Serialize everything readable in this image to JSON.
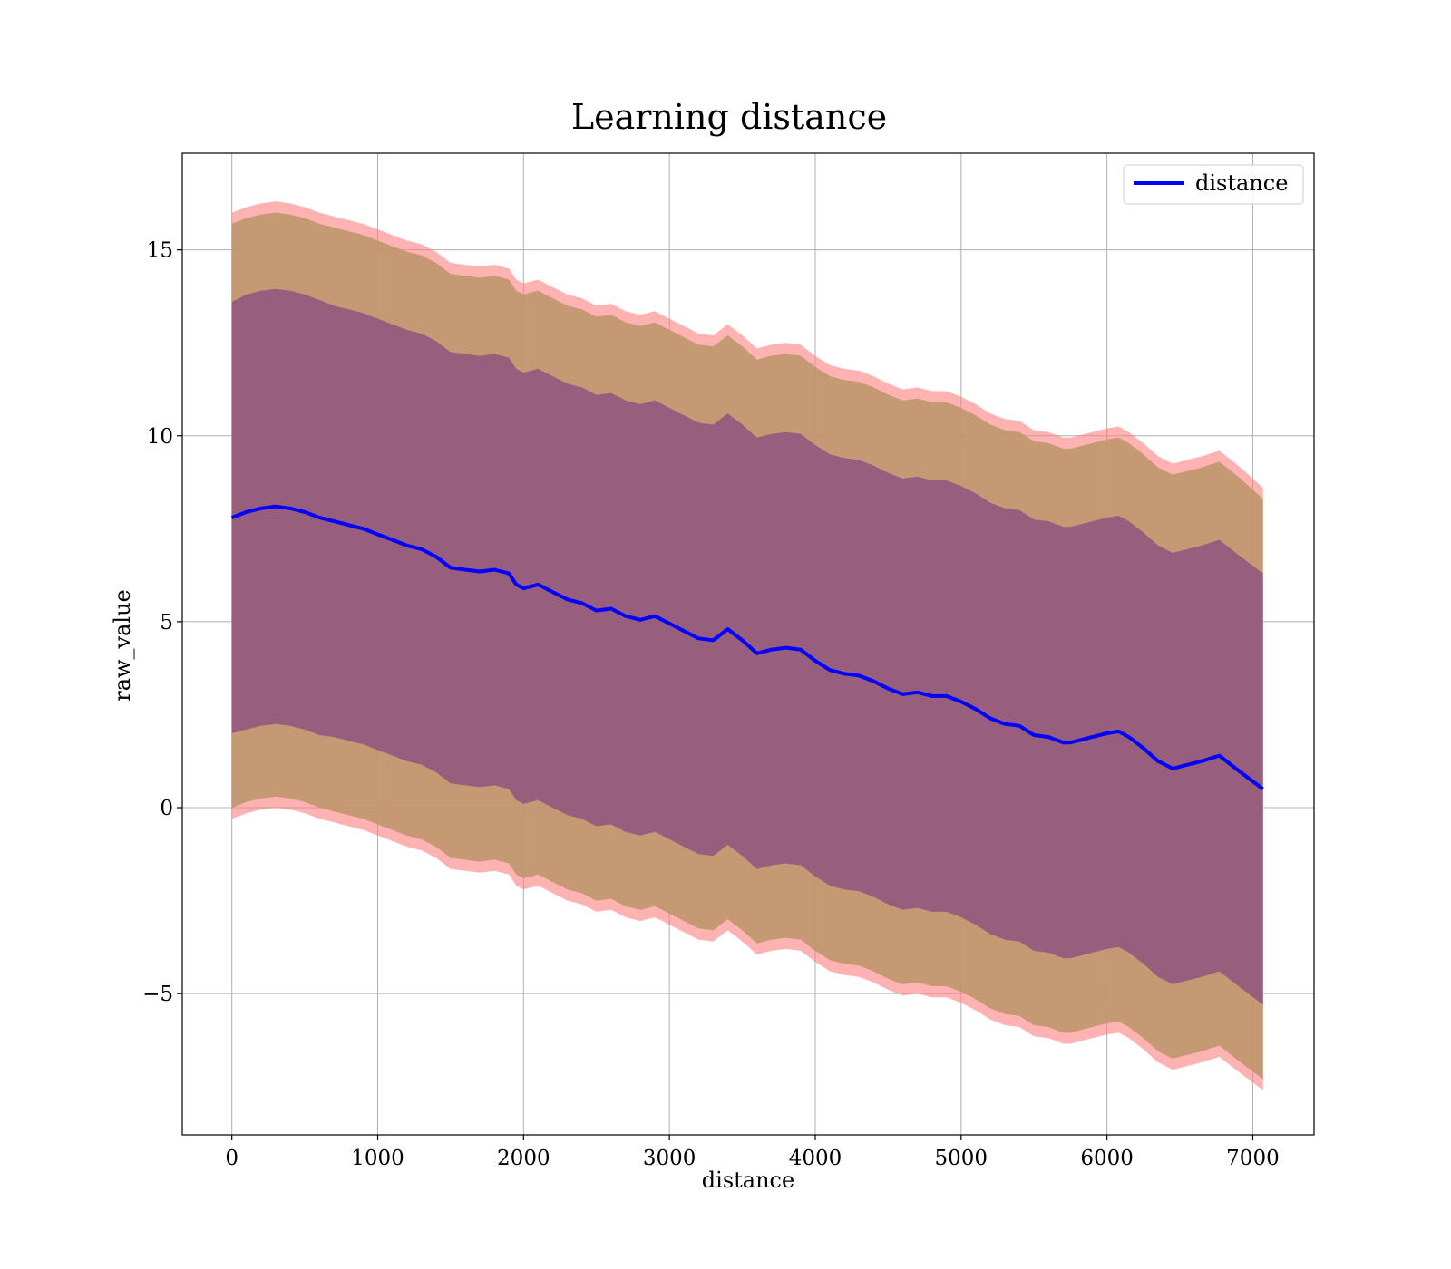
{
  "chart_data": {
    "type": "line",
    "title": "Learning distance",
    "xlabel": "distance",
    "ylabel": "raw_value",
    "xlim": [
      -340,
      7420
    ],
    "ylim": [
      -8.8,
      17.6
    ],
    "x_ticks": [
      0,
      1000,
      2000,
      3000,
      4000,
      5000,
      6000,
      7000
    ],
    "x_tick_labels": [
      "0",
      "1000",
      "2000",
      "3000",
      "4000",
      "5000",
      "6000",
      "7000"
    ],
    "y_ticks": [
      -5,
      0,
      5,
      10,
      15
    ],
    "y_tick_labels": [
      "−5",
      "0",
      "5",
      "10",
      "15"
    ],
    "grid": true,
    "legend": {
      "position": "upper-right",
      "entries": [
        "distance"
      ]
    },
    "colors": {
      "line": "#0000ff",
      "band_outer": "#ff7f7f",
      "band_middle": "#ad9555",
      "band_inner": "#8c4f7f",
      "grid": "#b0b0b0"
    },
    "series": [
      {
        "name": "distance",
        "x": [
          0,
          100,
          200,
          300,
          400,
          500,
          600,
          700,
          800,
          900,
          1000,
          1100,
          1200,
          1300,
          1400,
          1500,
          1600,
          1700,
          1800,
          1900,
          1950,
          2000,
          2100,
          2200,
          2300,
          2400,
          2500,
          2600,
          2700,
          2800,
          2900,
          3000,
          3100,
          3200,
          3300,
          3400,
          3500,
          3600,
          3700,
          3800,
          3900,
          4000,
          4100,
          4200,
          4300,
          4400,
          4500,
          4600,
          4700,
          4800,
          4900,
          5000,
          5100,
          5200,
          5300,
          5400,
          5500,
          5600,
          5700,
          5750,
          5800,
          5900,
          6000,
          6080,
          6150,
          6250,
          6350,
          6450,
          6550,
          6650,
          6770,
          6900,
          7070
        ],
        "y": [
          7.8,
          7.95,
          8.05,
          8.1,
          8.05,
          7.95,
          7.8,
          7.7,
          7.6,
          7.5,
          7.35,
          7.2,
          7.05,
          6.95,
          6.75,
          6.45,
          6.4,
          6.35,
          6.4,
          6.3,
          6.0,
          5.9,
          6.0,
          5.8,
          5.6,
          5.5,
          5.3,
          5.35,
          5.15,
          5.05,
          5.15,
          4.95,
          4.75,
          4.55,
          4.5,
          4.8,
          4.5,
          4.15,
          4.25,
          4.3,
          4.25,
          3.95,
          3.7,
          3.6,
          3.55,
          3.4,
          3.2,
          3.05,
          3.1,
          3.0,
          3.0,
          2.85,
          2.65,
          2.4,
          2.25,
          2.2,
          1.95,
          1.9,
          1.75,
          1.75,
          1.8,
          1.9,
          2.0,
          2.05,
          1.9,
          1.6,
          1.25,
          1.05,
          1.15,
          1.25,
          1.4,
          1.0,
          0.5
        ],
        "band_inner": {
          "upper": [
            13.6,
            13.8,
            13.9,
            13.95,
            13.9,
            13.8,
            13.65,
            13.5,
            13.4,
            13.3,
            13.15,
            13.0,
            12.85,
            12.75,
            12.55,
            12.25,
            12.2,
            12.15,
            12.2,
            12.1,
            11.8,
            11.7,
            11.8,
            11.6,
            11.4,
            11.3,
            11.1,
            11.15,
            10.95,
            10.85,
            10.95,
            10.75,
            10.55,
            10.35,
            10.3,
            10.6,
            10.3,
            9.95,
            10.05,
            10.1,
            10.05,
            9.75,
            9.5,
            9.4,
            9.35,
            9.2,
            9.0,
            8.85,
            8.9,
            8.8,
            8.8,
            8.65,
            8.45,
            8.2,
            8.05,
            8.0,
            7.75,
            7.7,
            7.55,
            7.55,
            7.6,
            7.7,
            7.8,
            7.85,
            7.7,
            7.4,
            7.05,
            6.85,
            6.95,
            7.05,
            7.2,
            6.8,
            6.3
          ],
          "lower": [
            2.0,
            2.1,
            2.2,
            2.25,
            2.2,
            2.1,
            1.95,
            1.9,
            1.8,
            1.7,
            1.55,
            1.4,
            1.25,
            1.15,
            0.95,
            0.65,
            0.6,
            0.55,
            0.6,
            0.5,
            0.2,
            0.1,
            0.2,
            0.0,
            -0.2,
            -0.3,
            -0.5,
            -0.45,
            -0.65,
            -0.75,
            -0.65,
            -0.85,
            -1.05,
            -1.25,
            -1.3,
            -1.0,
            -1.3,
            -1.65,
            -1.55,
            -1.5,
            -1.55,
            -1.85,
            -2.1,
            -2.2,
            -2.25,
            -2.4,
            -2.6,
            -2.75,
            -2.7,
            -2.8,
            -2.8,
            -2.95,
            -3.15,
            -3.4,
            -3.55,
            -3.6,
            -3.85,
            -3.9,
            -4.05,
            -4.05,
            -4.0,
            -3.9,
            -3.8,
            -3.75,
            -3.9,
            -4.2,
            -4.55,
            -4.75,
            -4.65,
            -4.55,
            -4.4,
            -4.8,
            -5.3
          ]
        },
        "band_middle": {
          "upper": [
            15.7,
            15.85,
            15.95,
            16.0,
            15.95,
            15.85,
            15.7,
            15.6,
            15.5,
            15.4,
            15.25,
            15.1,
            14.95,
            14.85,
            14.65,
            14.35,
            14.3,
            14.25,
            14.3,
            14.2,
            13.9,
            13.8,
            13.9,
            13.7,
            13.5,
            13.4,
            13.2,
            13.25,
            13.05,
            12.95,
            13.05,
            12.85,
            12.65,
            12.45,
            12.4,
            12.7,
            12.4,
            12.05,
            12.15,
            12.2,
            12.15,
            11.85,
            11.6,
            11.5,
            11.45,
            11.3,
            11.1,
            10.95,
            11.0,
            10.9,
            10.9,
            10.75,
            10.55,
            10.3,
            10.15,
            10.1,
            9.85,
            9.8,
            9.65,
            9.65,
            9.7,
            9.8,
            9.9,
            9.95,
            9.8,
            9.5,
            9.15,
            8.95,
            9.05,
            9.15,
            9.3,
            8.9,
            8.3
          ],
          "lower": [
            0.0,
            0.15,
            0.25,
            0.3,
            0.25,
            0.15,
            0.0,
            -0.1,
            -0.2,
            -0.3,
            -0.45,
            -0.6,
            -0.75,
            -0.85,
            -1.05,
            -1.35,
            -1.4,
            -1.45,
            -1.4,
            -1.5,
            -1.8,
            -1.9,
            -1.8,
            -2.0,
            -2.2,
            -2.3,
            -2.5,
            -2.45,
            -2.65,
            -2.75,
            -2.65,
            -2.85,
            -3.05,
            -3.25,
            -3.3,
            -3.0,
            -3.3,
            -3.65,
            -3.55,
            -3.5,
            -3.55,
            -3.85,
            -4.1,
            -4.2,
            -4.25,
            -4.4,
            -4.6,
            -4.75,
            -4.7,
            -4.8,
            -4.8,
            -4.95,
            -5.15,
            -5.4,
            -5.55,
            -5.6,
            -5.85,
            -5.9,
            -6.05,
            -6.05,
            -6.0,
            -5.9,
            -5.8,
            -5.75,
            -5.9,
            -6.2,
            -6.55,
            -6.75,
            -6.65,
            -6.55,
            -6.4,
            -6.8,
            -7.3
          ]
        },
        "band_outer": {
          "upper": [
            16.0,
            16.15,
            16.25,
            16.3,
            16.25,
            16.15,
            16.0,
            15.9,
            15.8,
            15.7,
            15.55,
            15.4,
            15.25,
            15.15,
            14.95,
            14.65,
            14.6,
            14.55,
            14.6,
            14.5,
            14.2,
            14.1,
            14.2,
            14.0,
            13.8,
            13.7,
            13.5,
            13.55,
            13.35,
            13.25,
            13.35,
            13.15,
            12.95,
            12.75,
            12.7,
            13.0,
            12.7,
            12.35,
            12.45,
            12.5,
            12.45,
            12.15,
            11.9,
            11.8,
            11.75,
            11.6,
            11.4,
            11.25,
            11.3,
            11.2,
            11.2,
            11.05,
            10.85,
            10.6,
            10.45,
            10.4,
            10.15,
            10.1,
            9.95,
            9.95,
            10.0,
            10.1,
            10.2,
            10.25,
            10.1,
            9.8,
            9.45,
            9.25,
            9.35,
            9.45,
            9.6,
            9.2,
            8.6
          ],
          "lower": [
            -0.3,
            -0.15,
            -0.05,
            0.0,
            -0.05,
            -0.15,
            -0.3,
            -0.4,
            -0.5,
            -0.6,
            -0.75,
            -0.9,
            -1.05,
            -1.15,
            -1.35,
            -1.65,
            -1.7,
            -1.75,
            -1.7,
            -1.8,
            -2.1,
            -2.2,
            -2.1,
            -2.3,
            -2.5,
            -2.6,
            -2.8,
            -2.75,
            -2.95,
            -3.05,
            -2.95,
            -3.15,
            -3.35,
            -3.55,
            -3.6,
            -3.3,
            -3.6,
            -3.95,
            -3.85,
            -3.8,
            -3.85,
            -4.15,
            -4.4,
            -4.5,
            -4.55,
            -4.7,
            -4.9,
            -5.05,
            -5.0,
            -5.1,
            -5.1,
            -5.25,
            -5.45,
            -5.7,
            -5.85,
            -5.9,
            -6.15,
            -6.2,
            -6.35,
            -6.35,
            -6.3,
            -6.2,
            -6.1,
            -6.05,
            -6.2,
            -6.5,
            -6.85,
            -7.05,
            -6.95,
            -6.85,
            -6.7,
            -7.1,
            -7.6
          ]
        }
      }
    ]
  }
}
